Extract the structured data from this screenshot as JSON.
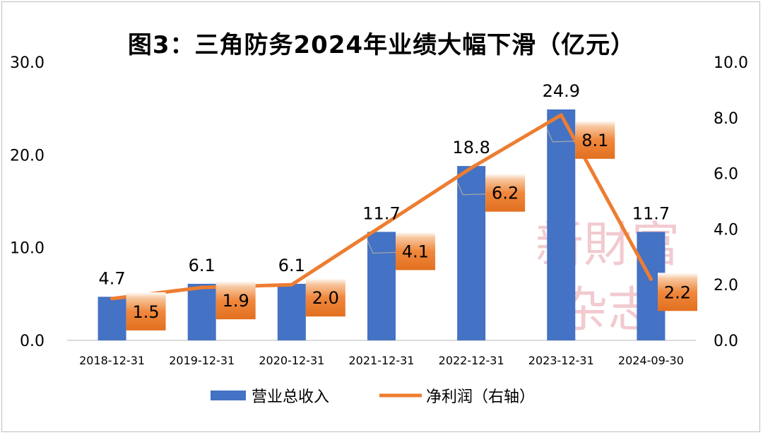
{
  "title": "图3：三角防务2024年业绩大幅下滑（亿元）",
  "watermark": {
    "line1": "新財富",
    "line2": "杂志"
  },
  "chart_data": {
    "type": "bar+line",
    "categories": [
      "2018-12-31",
      "2019-12-31",
      "2020-12-31",
      "2021-12-31",
      "2022-12-31",
      "2023-12-31",
      "2024-09-30"
    ],
    "series": [
      {
        "name": "营业总收入",
        "type": "bar",
        "axis": "left",
        "color": "#4472C4",
        "values": [
          4.7,
          6.1,
          6.1,
          11.7,
          18.8,
          24.9,
          11.7
        ],
        "labels": [
          "4.7",
          "6.1",
          "6.1",
          "11.7",
          "18.8",
          "24.9",
          "11.7"
        ]
      },
      {
        "name": "净利润（右轴）",
        "type": "line",
        "axis": "right",
        "color": "#ED7D31",
        "values": [
          1.5,
          1.9,
          2.0,
          4.1,
          6.2,
          8.1,
          2.2
        ],
        "labels": [
          "1.5",
          "1.9",
          "2.0",
          "4.1",
          "6.2",
          "8.1",
          "2.2"
        ]
      }
    ],
    "y_left": {
      "min": 0,
      "max": 30,
      "ticks": [
        "0.0",
        "10.0",
        "20.0",
        "30.0"
      ]
    },
    "y_right": {
      "min": 0,
      "max": 10,
      "ticks": [
        "0.0",
        "2.0",
        "4.0",
        "6.0",
        "8.0",
        "10.0"
      ]
    },
    "legend": {
      "position": "bottom",
      "items": [
        "营业总收入",
        "净利润（右轴）"
      ]
    },
    "grid": false
  }
}
